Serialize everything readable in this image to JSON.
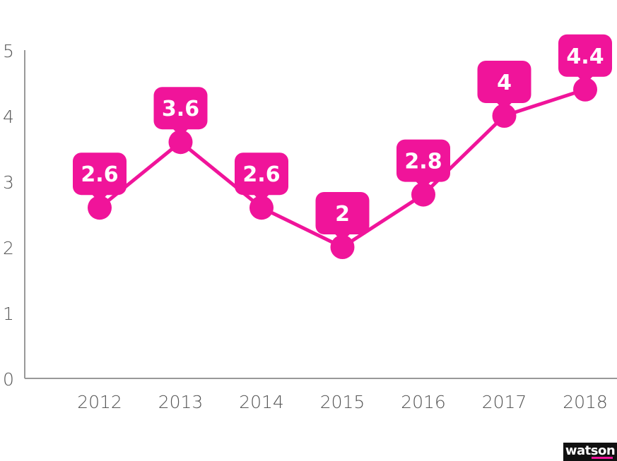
{
  "chart_data": {
    "type": "line",
    "title": "",
    "xlabel": "",
    "ylabel": "",
    "categories": [
      "2012",
      "2013",
      "2014",
      "2015",
      "2016",
      "2017",
      "2018"
    ],
    "series": [
      {
        "values": [
          2.6,
          3.6,
          2.6,
          2.0,
          2.8,
          4.0,
          4.4
        ],
        "labels": [
          "2.6",
          "3.6",
          "2.6",
          "2",
          "2.8",
          "4",
          "4.4"
        ]
      }
    ],
    "ylim": [
      0,
      5
    ],
    "yticks": [
      "0",
      "1",
      "2",
      "3",
      "4",
      "5"
    ],
    "grid": false,
    "legend": "none",
    "colors": {
      "series": "#f0149a",
      "axis": "#999999",
      "tick_text": "#555555",
      "label_text": "#ffffff"
    }
  },
  "branding": {
    "logo_text": "watson",
    "logo_bg": "#111111",
    "logo_accent": "#f0149a"
  }
}
